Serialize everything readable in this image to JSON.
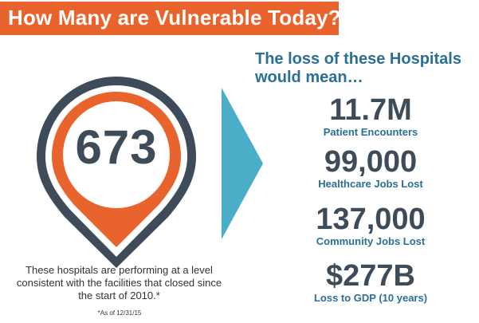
{
  "header": {
    "title": "How Many are Vulnerable Today?"
  },
  "pin": {
    "number": "673",
    "note": "These hospitals are performing at a level consistent with the facilities that closed since the start of 2010.*",
    "footnote": "*As of 12/31/15"
  },
  "loss": {
    "heading": "The loss of these Hospitals would mean…",
    "stats": [
      {
        "value": "11.7M",
        "label": "Patient Encounters"
      },
      {
        "value": "99,000",
        "label": "Healthcare Jobs Lost"
      },
      {
        "value": "137,000",
        "label": "Community Jobs Lost"
      },
      {
        "value": "$277B",
        "label": "Loss to GDP (10 years)"
      }
    ]
  },
  "colors": {
    "orange": "#e8642c",
    "slate": "#3e4b59",
    "blue": "#2a6f95",
    "teal": "#4aaec9"
  },
  "icons": {
    "pin": "map-pin-icon",
    "arrow": "chevron-right-icon"
  }
}
